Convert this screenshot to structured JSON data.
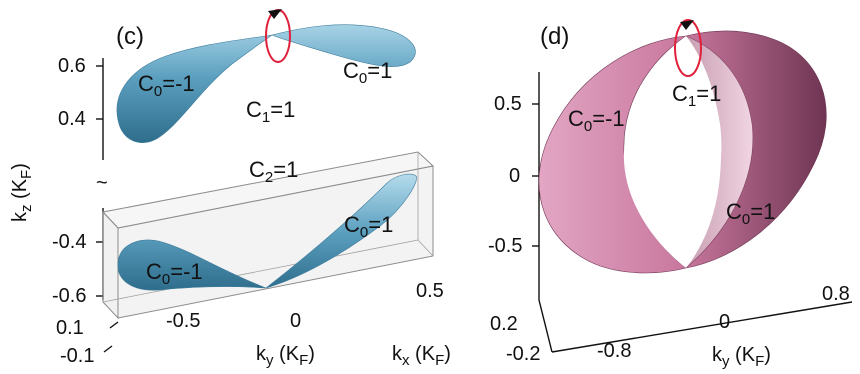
{
  "panel_c": {
    "label": "(c)",
    "z_ticks_upper": [
      "0.6",
      "0.4"
    ],
    "z_ticks_lower": [
      "-0.4",
      "-0.6"
    ],
    "z_axis_label": {
      "main": "k",
      "sub": "z",
      "unit_open": " (K",
      "unit_sub": "F",
      "unit_close": ")"
    },
    "axis_break": "~",
    "ky_ticks": [
      "-0.5",
      "0",
      "0.5"
    ],
    "kx_ticks": [
      "0.1",
      "-0.1"
    ],
    "ky_label": {
      "main": "k",
      "sub": "y",
      "unit_open": " (K",
      "unit_sub": "F",
      "unit_close": ")"
    },
    "kx_label": {
      "main": "k",
      "sub": "x",
      "unit_open": " (K",
      "unit_sub": "F",
      "unit_close": ")"
    },
    "chern_labels": {
      "upper_left": {
        "main": "C",
        "sub": "0",
        "value": "=-1"
      },
      "upper_right": {
        "main": "C",
        "sub": "0",
        "value": "=1"
      },
      "upper_center": {
        "main": "C",
        "sub": "1",
        "value": "=1"
      },
      "box": {
        "main": "C",
        "sub": "2",
        "value": "=1"
      },
      "lower_right": {
        "main": "C",
        "sub": "0",
        "value": "=1"
      },
      "lower_left": {
        "main": "C",
        "sub": "0",
        "value": "=-1"
      }
    },
    "surface_color": "#5b9fbf"
  },
  "panel_d": {
    "label": "(d)",
    "z_ticks": [
      "0.5",
      "0",
      "-0.5"
    ],
    "ky_ticks": [
      "-0.8",
      "0",
      "0.8"
    ],
    "kx_ticks": [
      "0.2",
      "-0.2"
    ],
    "ky_label": {
      "main": "k",
      "sub": "y",
      "unit_open": " (K",
      "unit_sub": "F",
      "unit_close": ")"
    },
    "chern_labels": {
      "left": {
        "main": "C",
        "sub": "0",
        "value": "=-1"
      },
      "top": {
        "main": "C",
        "sub": "1",
        "value": "=1"
      },
      "right": {
        "main": "C",
        "sub": "0",
        "value": "=1"
      }
    },
    "surface_color": "#c9789e"
  },
  "loop_color": "#e0203c"
}
